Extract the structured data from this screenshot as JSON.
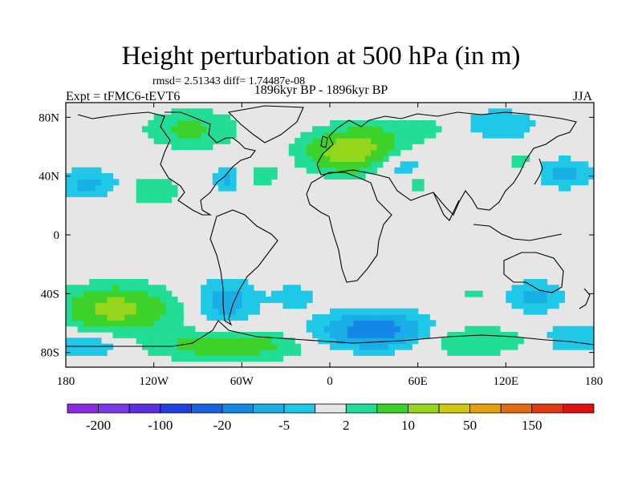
{
  "header": {
    "title": "Height perturbation at 500 hPa (in m)",
    "stats": "rmsd= 2.51343 diff= 1.74487e-08",
    "period": "1896kyr BP - 1896kyr BP",
    "experiment": "Expt = tFMC6-tEVT6",
    "season": "JJA"
  },
  "chart_data": {
    "type": "heatmap",
    "title": "Height perturbation at 500 hPa (in m)",
    "projection": "cylindrical-equidistant",
    "xlim": [
      -180,
      180
    ],
    "ylim": [
      -90,
      90
    ],
    "x_ticks": [
      {
        "value": -180,
        "label": "180"
      },
      {
        "value": -120,
        "label": "120W"
      },
      {
        "value": -60,
        "label": "60W"
      },
      {
        "value": 0,
        "label": "0"
      },
      {
        "value": 60,
        "label": "60E"
      },
      {
        "value": 120,
        "label": "120E"
      },
      {
        "value": 180,
        "label": "180"
      }
    ],
    "y_ticks": [
      {
        "value": 80,
        "label": "80N"
      },
      {
        "value": 40,
        "label": "40N"
      },
      {
        "value": 0,
        "label": "0"
      },
      {
        "value": -40,
        "label": "40S"
      },
      {
        "value": -80,
        "label": "80S"
      }
    ],
    "levels": [
      -200,
      -150,
      -100,
      -50,
      -20,
      -10,
      -5,
      -2,
      2,
      5,
      10,
      20,
      50,
      100,
      150,
      200
    ],
    "colorbar_labels": [
      {
        "level": -200,
        "text": "-200"
      },
      {
        "level": -100,
        "text": "-100"
      },
      {
        "level": -20,
        "text": "-20"
      },
      {
        "level": -5,
        "text": "-5"
      },
      {
        "level": 2,
        "text": "2"
      },
      {
        "level": 10,
        "text": "10"
      },
      {
        "level": 50,
        "text": "50"
      },
      {
        "level": 150,
        "text": "150"
      }
    ],
    "colors": [
      "#8a2be2",
      "#7a3be6",
      "#5a30e0",
      "#2040e0",
      "#1a60e0",
      "#1486e6",
      "#1aaee6",
      "#20c8e8",
      "#e6e6e6",
      "#22dd96",
      "#3cd22a",
      "#96d61c",
      "#d2c814",
      "#e6a010",
      "#e66a10",
      "#e03a10",
      "#e01010"
    ],
    "neutral_color": "#e6e6e6",
    "anomalies": [
      {
        "lon": -95,
        "lat": 72,
        "rx": 30,
        "ry": 13,
        "amp": 6
      },
      {
        "lon": -120,
        "lat": 30,
        "rx": 18,
        "ry": 12,
        "amp": 4
      },
      {
        "lon": -165,
        "lat": 35,
        "rx": 20,
        "ry": 10,
        "amp": -6
      },
      {
        "lon": -70,
        "lat": 38,
        "rx": 9,
        "ry": 9,
        "amp": -6
      },
      {
        "lon": -45,
        "lat": 40,
        "rx": 15,
        "ry": 8,
        "amp": 3
      },
      {
        "lon": 15,
        "lat": 57,
        "rx": 30,
        "ry": 14,
        "amp": 14
      },
      {
        "lon": 55,
        "lat": 72,
        "rx": 35,
        "ry": 10,
        "amp": 3
      },
      {
        "lon": 45,
        "lat": 48,
        "rx": 20,
        "ry": 10,
        "amp": -5
      },
      {
        "lon": 60,
        "lat": 35,
        "rx": 8,
        "ry": 6,
        "amp": 3
      },
      {
        "lon": 115,
        "lat": 75,
        "rx": 25,
        "ry": 10,
        "amp": -5
      },
      {
        "lon": 160,
        "lat": 42,
        "rx": 18,
        "ry": 10,
        "amp": -6
      },
      {
        "lon": 130,
        "lat": 50,
        "rx": 10,
        "ry": 8,
        "amp": 3
      },
      {
        "lon": -145,
        "lat": -50,
        "rx": 35,
        "ry": 15,
        "amp": 12
      },
      {
        "lon": -70,
        "lat": -45,
        "rx": 20,
        "ry": 15,
        "amp": -7
      },
      {
        "lon": -25,
        "lat": -42,
        "rx": 15,
        "ry": 8,
        "amp": -4
      },
      {
        "lon": -70,
        "lat": -75,
        "rx": 50,
        "ry": 10,
        "amp": 8
      },
      {
        "lon": -165,
        "lat": -75,
        "rx": 25,
        "ry": 8,
        "amp": -5
      },
      {
        "lon": 30,
        "lat": -65,
        "rx": 35,
        "ry": 12,
        "amp": -14
      },
      {
        "lon": 95,
        "lat": -72,
        "rx": 40,
        "ry": 10,
        "amp": 5
      },
      {
        "lon": 100,
        "lat": -40,
        "rx": 10,
        "ry": 5,
        "amp": 3
      },
      {
        "lon": 140,
        "lat": -42,
        "rx": 20,
        "ry": 10,
        "amp": -6
      },
      {
        "lon": 165,
        "lat": -70,
        "rx": 20,
        "ry": 10,
        "amp": -5
      }
    ]
  }
}
